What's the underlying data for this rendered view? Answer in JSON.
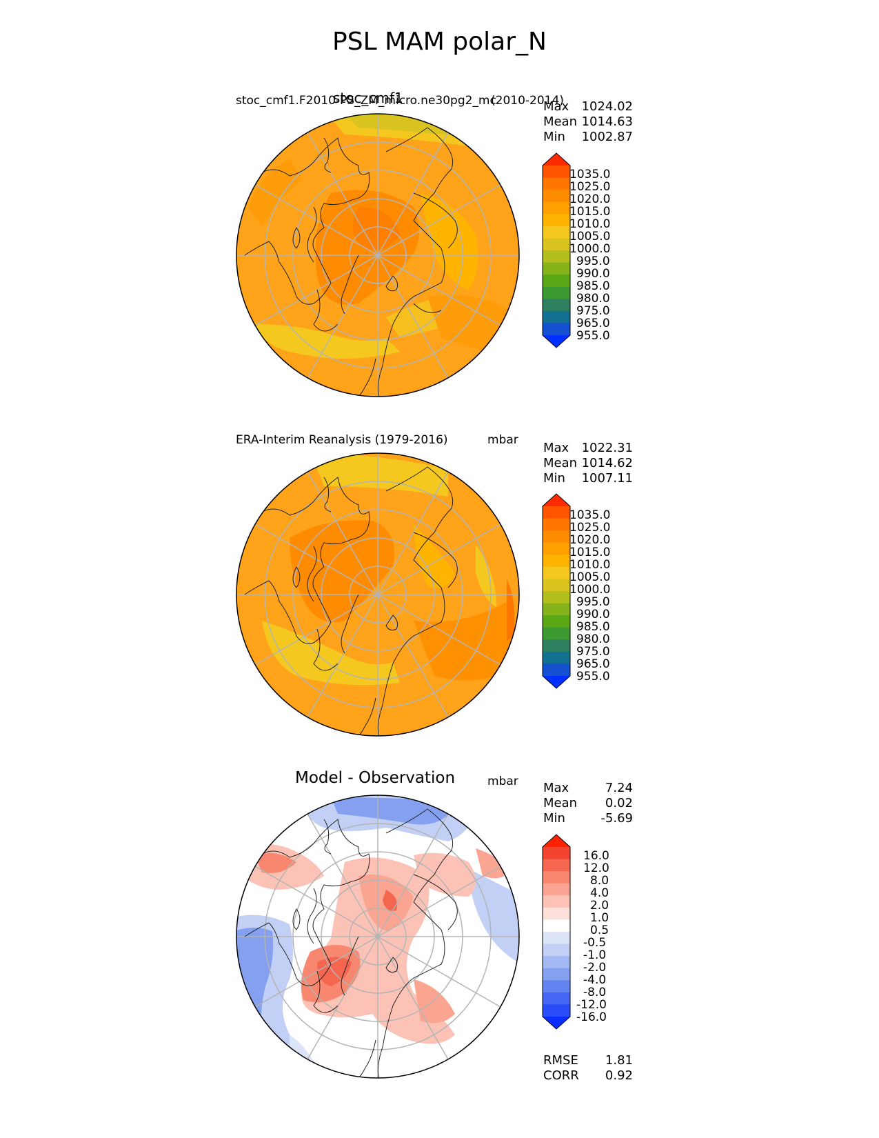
{
  "title": "PSL MAM polar_N",
  "panels": [
    {
      "id": "model",
      "center_title": "stoc_cmf1",
      "left_title": "stoc_cmf1.F2010-PS_ZM_micro.ne30pg2_mc",
      "right_title": "(2010-2014)",
      "units": "",
      "stats": [
        {
          "label": "Max",
          "value": "1024.02"
        },
        {
          "label": "Mean",
          "value": "1014.63"
        },
        {
          "label": "Min",
          "value": "1002.87"
        }
      ],
      "colorbar": {
        "labels": [
          "1035.0",
          "1025.0",
          "1020.0",
          "1015.0",
          "1010.0",
          "1005.0",
          "1000.0",
          "995.0",
          "990.0",
          "985.0",
          "980.0",
          "975.0",
          "965.0",
          "955.0"
        ],
        "colors": [
          "#ff2a00",
          "#ff5500",
          "#ff7600",
          "#ff8c00",
          "#ffa000",
          "#ffb400",
          "#f4c81f",
          "#d9c41f",
          "#b2bf1c",
          "#86b21a",
          "#5aa816",
          "#3d9a33",
          "#2f8060",
          "#127090",
          "#1450d0",
          "#0030ff"
        ]
      },
      "extra_stats": []
    },
    {
      "id": "obs",
      "center_title": "",
      "left_title": "ERA-Interim Reanalysis (1979-2016)",
      "right_title": "mbar",
      "units": "mbar",
      "stats": [
        {
          "label": "Max",
          "value": "1022.31"
        },
        {
          "label": "Mean",
          "value": "1014.62"
        },
        {
          "label": "Min",
          "value": "1007.11"
        }
      ],
      "colorbar": {
        "labels": [
          "1035.0",
          "1025.0",
          "1020.0",
          "1015.0",
          "1010.0",
          "1005.0",
          "1000.0",
          "995.0",
          "990.0",
          "985.0",
          "980.0",
          "975.0",
          "965.0",
          "955.0"
        ],
        "colors": [
          "#ff2a00",
          "#ff5500",
          "#ff7600",
          "#ff8c00",
          "#ffa000",
          "#ffb400",
          "#f4c81f",
          "#d9c41f",
          "#b2bf1c",
          "#86b21a",
          "#5aa816",
          "#3d9a33",
          "#2f8060",
          "#127090",
          "#1450d0",
          "#0030ff"
        ]
      },
      "extra_stats": []
    },
    {
      "id": "diff",
      "center_title": "Model - Observation",
      "left_title": "",
      "right_title": "mbar",
      "units": "mbar",
      "stats": [
        {
          "label": "Max",
          "value": "7.24"
        },
        {
          "label": "Mean",
          "value": "0.02"
        },
        {
          "label": "Min",
          "value": "-5.69"
        }
      ],
      "colorbar": {
        "labels": [
          "16.0",
          "12.0",
          "8.0",
          "4.0",
          "2.0",
          "1.0",
          "0.5",
          "-0.5",
          "-1.0",
          "-2.0",
          "-4.0",
          "-8.0",
          "-12.0",
          "-16.0"
        ],
        "colors": [
          "#ff2200",
          "#f2442e",
          "#f46650",
          "#f7886f",
          "#f9a592",
          "#fcc2b6",
          "#fde0d9",
          "#ffffff",
          "#dce4f8",
          "#c3d0f5",
          "#a4b8f2",
          "#84a0ef",
          "#6384ef",
          "#4466f2",
          "#2a4cf6",
          "#0a2eff"
        ]
      },
      "extra_stats": [
        {
          "label": "RMSE",
          "value": "1.81"
        },
        {
          "label": "CORR",
          "value": "0.92"
        }
      ]
    }
  ],
  "map_colors": {
    "model": {
      "base": "#ffa31a",
      "high": "#ff8c00",
      "low": "#f4c81f",
      "lowest": "#d9c41f"
    },
    "obs": {
      "base": "#ffa31a",
      "high": "#ff8c00",
      "low": "#f4c81f",
      "lowest": "#ff7600"
    },
    "diff": {
      "base": "#ffffff",
      "pos1": "#fcc2b6",
      "pos2": "#f7886f",
      "neg1": "#c3d0f5",
      "neg2": "#84a0ef"
    }
  }
}
